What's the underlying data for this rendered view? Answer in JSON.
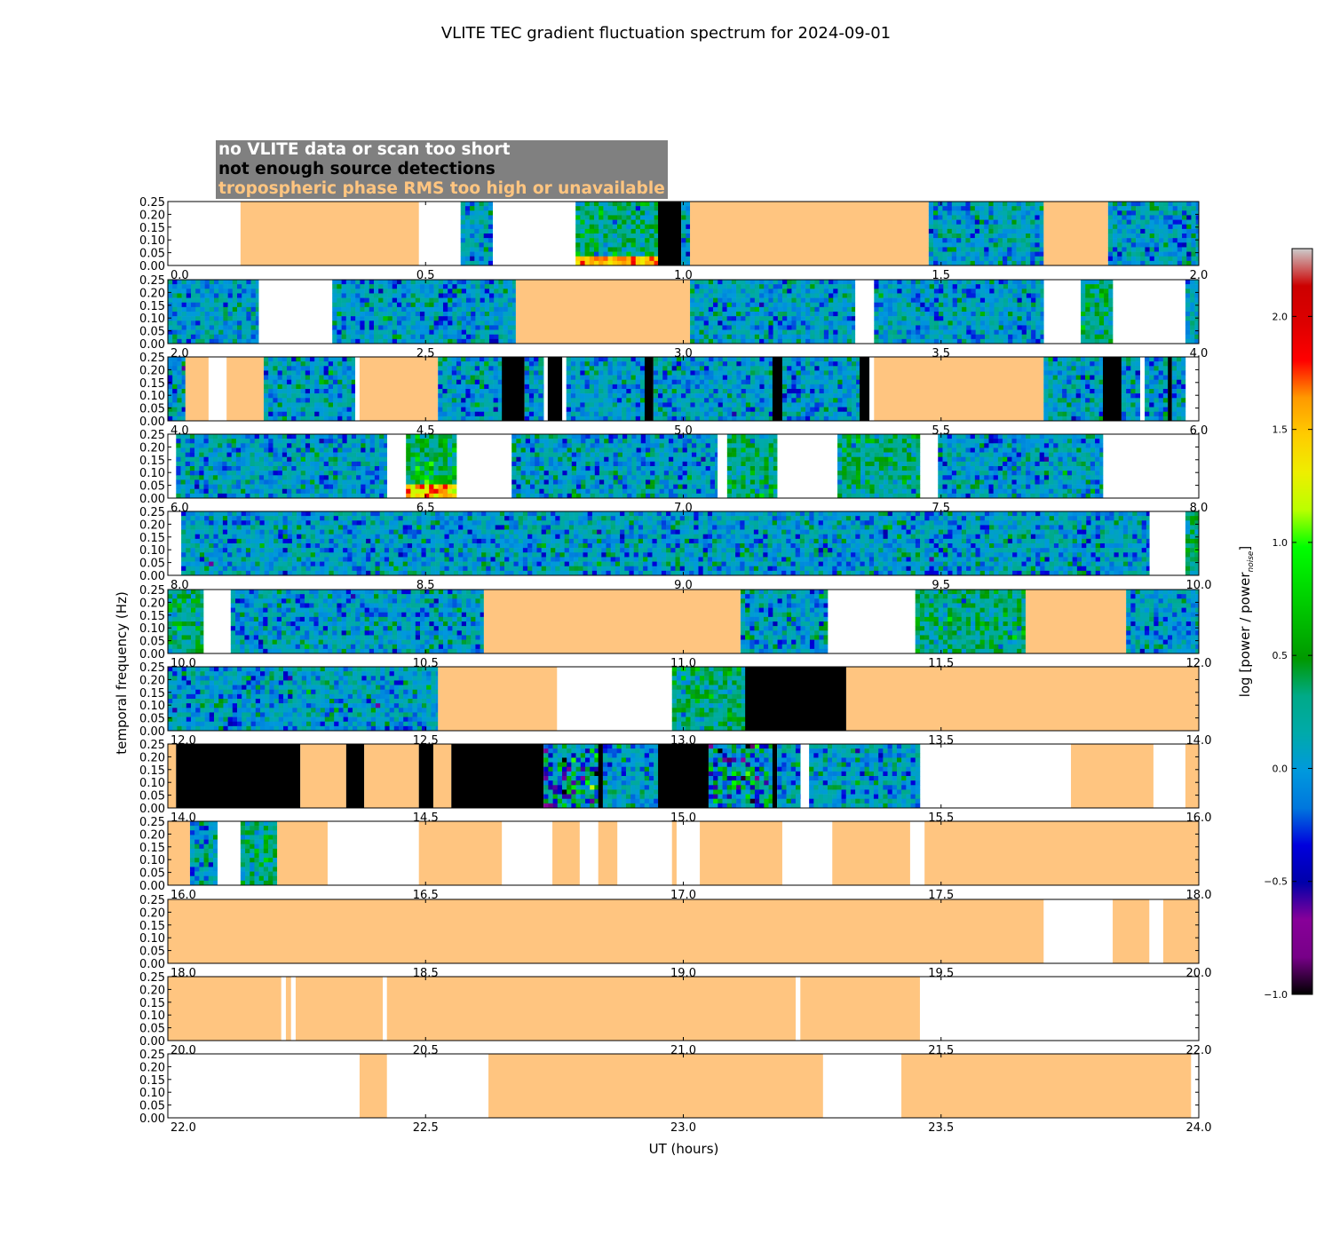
{
  "chart_data": {
    "type": "heatmap",
    "title": "VLITE TEC gradient fluctuation spectrum for 2024-09-01",
    "xlabel": "UT (hours)",
    "ylabel": "temporal frequency (Hz)",
    "ylim": [
      0,
      0.25
    ],
    "y_ticks": [
      "0.00",
      "0.05",
      "0.10",
      "0.15",
      "0.20",
      "0.25"
    ],
    "colorbar": {
      "label_main": "log [power / power",
      "label_sub": "noise",
      "label_end": "]",
      "range": [
        -1.0,
        2.3
      ],
      "ticks": [
        "-1.0",
        "-0.5",
        "0.0",
        "0.5",
        "1.0",
        "1.5",
        "2.0"
      ],
      "colormap": "nipy_spectral"
    },
    "legend": [
      {
        "label": "no VLITE data or scan too short",
        "color": "#ffffff"
      },
      {
        "label": "not enough source detections",
        "color": "#000000"
      },
      {
        "label": "tropospheric phase RMS too high or unavailable",
        "color": "#ffc580"
      }
    ],
    "status_colors": {
      "nodata": "#ffffff",
      "few": "#000000",
      "trop": "#ffc580"
    },
    "panels": [
      {
        "xlim": [
          0,
          2
        ],
        "x_ticks": [
          "0.0",
          "0.5",
          "1.0",
          "1.5",
          "2.0"
        ],
        "segments": [
          [
            0.141,
            0.487,
            "trop"
          ],
          [
            0.568,
            0.63,
            "spec"
          ],
          [
            0.791,
            0.951,
            "spec_hot_low"
          ],
          [
            0.951,
            0.996,
            "few"
          ],
          [
            0.996,
            1.013,
            "spec"
          ],
          [
            1.013,
            1.476,
            "trop"
          ],
          [
            1.476,
            1.699,
            "spec"
          ],
          [
            1.699,
            1.824,
            "trop"
          ],
          [
            1.824,
            2.0,
            "spec"
          ]
        ]
      },
      {
        "xlim": [
          2,
          4
        ],
        "x_ticks": [
          "2.0",
          "2.5",
          "3.0",
          "3.5",
          "4.0"
        ],
        "segments": [
          [
            2.0,
            2.176,
            "spec"
          ],
          [
            2.319,
            2.675,
            "spec"
          ],
          [
            2.675,
            3.013,
            "trop"
          ],
          [
            3.013,
            3.333,
            "spec"
          ],
          [
            3.37,
            3.699,
            "spec"
          ],
          [
            3.771,
            3.833,
            "spec_green"
          ],
          [
            3.974,
            4.0,
            "spec"
          ]
        ]
      },
      {
        "xlim": [
          4,
          6
        ],
        "x_ticks": [
          "4.0",
          "4.5",
          "5.0",
          "5.5",
          "6.0"
        ],
        "segments": [
          [
            4.0,
            4.034,
            "spec"
          ],
          [
            4.034,
            4.079,
            "trop"
          ],
          [
            4.114,
            4.186,
            "trop"
          ],
          [
            4.186,
            4.363,
            "spec"
          ],
          [
            4.372,
            4.524,
            "trop"
          ],
          [
            4.524,
            4.648,
            "spec"
          ],
          [
            4.648,
            4.692,
            "few"
          ],
          [
            4.692,
            4.729,
            "spec"
          ],
          [
            4.737,
            4.765,
            "few"
          ],
          [
            4.773,
            4.925,
            "spec"
          ],
          [
            4.925,
            4.942,
            "few"
          ],
          [
            4.942,
            5.173,
            "spec"
          ],
          [
            5.173,
            5.192,
            "few"
          ],
          [
            5.192,
            5.342,
            "spec"
          ],
          [
            5.342,
            5.361,
            "few"
          ],
          [
            5.37,
            5.699,
            "trop"
          ],
          [
            5.699,
            5.814,
            "spec"
          ],
          [
            5.814,
            5.85,
            "few"
          ],
          [
            5.85,
            5.886,
            "spec"
          ],
          [
            5.895,
            5.94,
            "spec"
          ],
          [
            5.94,
            5.948,
            "few"
          ],
          [
            5.948,
            5.974,
            "spec"
          ]
        ]
      },
      {
        "xlim": [
          6,
          8
        ],
        "x_ticks": [
          "6.0",
          "6.5",
          "7.0",
          "7.5",
          "8.0"
        ],
        "segments": [
          [
            6.016,
            6.425,
            "spec"
          ],
          [
            6.462,
            6.56,
            "spec_hot"
          ],
          [
            6.667,
            7.066,
            "spec"
          ],
          [
            7.085,
            7.182,
            "spec_green"
          ],
          [
            7.299,
            7.459,
            "spec_green"
          ],
          [
            7.494,
            7.814,
            "spec"
          ]
        ]
      },
      {
        "xlim": [
          8,
          10
        ],
        "x_ticks": [
          "8.0",
          "8.5",
          "9.0",
          "9.5",
          "10.0"
        ],
        "segments": [
          [
            8.026,
            9.904,
            "spec"
          ],
          [
            9.974,
            10.0,
            "spec_green"
          ]
        ]
      },
      {
        "xlim": [
          10,
          12
        ],
        "x_ticks": [
          "10.0",
          "10.5",
          "11.0",
          "11.5",
          "12.0"
        ],
        "segments": [
          [
            10.0,
            10.069,
            "spec_green"
          ],
          [
            10.122,
            10.613,
            "spec"
          ],
          [
            10.613,
            11.111,
            "trop"
          ],
          [
            11.111,
            11.28,
            "spec"
          ],
          [
            11.45,
            11.664,
            "spec_green"
          ],
          [
            11.664,
            11.859,
            "trop"
          ],
          [
            11.859,
            12.0,
            "spec"
          ]
        ]
      },
      {
        "xlim": [
          12,
          14
        ],
        "x_ticks": [
          "12.0",
          "12.5",
          "13.0",
          "13.5",
          "14.0"
        ],
        "segments": [
          [
            12.0,
            12.524,
            "spec"
          ],
          [
            12.524,
            12.755,
            "trop"
          ],
          [
            12.978,
            13.12,
            "spec_green"
          ],
          [
            13.12,
            13.316,
            "few"
          ],
          [
            13.316,
            14.0,
            "trop"
          ]
        ]
      },
      {
        "xlim": [
          14,
          16
        ],
        "x_ticks": [
          "14.0",
          "14.5",
          "15.0",
          "15.5",
          "16.0"
        ],
        "segments": [
          [
            14.0,
            14.016,
            "trop"
          ],
          [
            14.016,
            14.257,
            "few"
          ],
          [
            14.257,
            14.346,
            "trop"
          ],
          [
            14.346,
            14.381,
            "few"
          ],
          [
            14.381,
            14.487,
            "trop"
          ],
          [
            14.487,
            14.515,
            "few"
          ],
          [
            14.515,
            14.55,
            "trop"
          ],
          [
            14.55,
            14.729,
            "few"
          ],
          [
            14.729,
            14.835,
            "spec_wild"
          ],
          [
            14.835,
            14.844,
            "few"
          ],
          [
            14.844,
            14.951,
            "spec"
          ],
          [
            14.951,
            15.049,
            "few"
          ],
          [
            15.049,
            15.173,
            "spec_wild"
          ],
          [
            15.173,
            15.182,
            "few"
          ],
          [
            15.182,
            15.227,
            "spec"
          ],
          [
            15.244,
            15.459,
            "spec"
          ],
          [
            15.752,
            15.912,
            "trop"
          ],
          [
            15.974,
            16.0,
            "trop"
          ]
        ]
      },
      {
        "xlim": [
          16,
          18
        ],
        "x_ticks": [
          "16.0",
          "16.5",
          "17.0",
          "17.5",
          "18.0"
        ],
        "segments": [
          [
            16.0,
            16.043,
            "trop"
          ],
          [
            16.043,
            16.096,
            "spec"
          ],
          [
            16.141,
            16.212,
            "spec_green"
          ],
          [
            16.212,
            16.31,
            "trop"
          ],
          [
            16.487,
            16.648,
            "trop"
          ],
          [
            16.746,
            16.799,
            "trop"
          ],
          [
            16.835,
            16.872,
            "trop"
          ],
          [
            16.978,
            16.987,
            "trop"
          ],
          [
            17.032,
            17.192,
            "trop"
          ],
          [
            17.289,
            17.44,
            "trop"
          ],
          [
            17.468,
            18.0,
            "trop"
          ]
        ]
      },
      {
        "xlim": [
          18,
          20
        ],
        "x_ticks": [
          "18.0",
          "18.5",
          "19.0",
          "19.5",
          "20.0"
        ],
        "segments": [
          [
            18.0,
            19.699,
            "trop"
          ],
          [
            19.833,
            19.904,
            "trop"
          ],
          [
            19.931,
            20.0,
            "trop"
          ]
        ]
      },
      {
        "xlim": [
          20,
          22
        ],
        "x_ticks": [
          "20.0",
          "20.5",
          "21.0",
          "21.5",
          "22.0"
        ],
        "segments": [
          [
            20.0,
            20.22,
            "trop"
          ],
          [
            20.229,
            20.239,
            "trop"
          ],
          [
            20.248,
            20.417,
            "trop"
          ],
          [
            20.425,
            21.218,
            "trop"
          ],
          [
            21.227,
            21.459,
            "trop"
          ]
        ]
      },
      {
        "xlim": [
          22,
          24
        ],
        "x_ticks": [
          "22.0",
          "22.5",
          "23.0",
          "23.5",
          "24.0"
        ],
        "segments": [
          [
            22.372,
            22.425,
            "trop"
          ],
          [
            22.622,
            23.271,
            "trop"
          ],
          [
            23.423,
            23.985,
            "trop"
          ]
        ]
      }
    ]
  }
}
